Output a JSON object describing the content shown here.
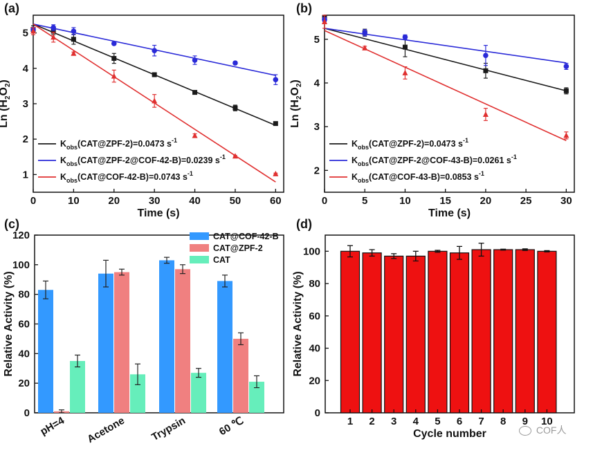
{
  "colors": {
    "black": "#1a1a1a",
    "blue": "#2a2ad8",
    "red": "#e03030",
    "bar_blue": "#3399ff",
    "bar_pink": "#f08080",
    "bar_green": "#66eebb",
    "bar_red": "#ee1111"
  },
  "watermark": "COF人",
  "chart_data": [
    {
      "panel": "(a)",
      "type": "scatter",
      "xlabel": "Time (s)",
      "ylabel": "Ln (H2O2)",
      "xlim": [
        0,
        62
      ],
      "ylim": [
        0.5,
        5.5
      ],
      "xticks": [
        "0",
        "10",
        "20",
        "30",
        "40",
        "50",
        "60"
      ],
      "yticks": [
        "1",
        "2",
        "3",
        "4",
        "5"
      ],
      "series": [
        {
          "name": "Kobs(CAT@ZPF-2)=0.0473 s-1",
          "leg_sub": "obs",
          "leg_pre": "(CAT@ZPF-2)=0.0473 s",
          "leg_sup": "-1",
          "color": "#1a1a1a",
          "marker": "square",
          "x": [
            0,
            5,
            10,
            20,
            30,
            40,
            50,
            60
          ],
          "y": [
            5.1,
            5.05,
            4.82,
            4.28,
            3.82,
            3.32,
            2.88,
            2.44
          ],
          "err": [
            0.1,
            0.1,
            0.14,
            0.14,
            0.05,
            0.04,
            0.08,
            0.04
          ],
          "fit": [
            [
              0,
              5.25
            ],
            [
              60,
              2.39
            ]
          ]
        },
        {
          "name": "Kobs(CAT@ZPF-2@COF-42-B)=0.0239 s-1",
          "leg_sub": "obs",
          "leg_pre": "(CAT@ZPF-2@COF-42-B)=0.0239 s",
          "leg_sup": "-1",
          "color": "#2a2ad8",
          "marker": "circle",
          "x": [
            0,
            5,
            10,
            20,
            30,
            40,
            50,
            60
          ],
          "y": [
            5.1,
            5.15,
            5.05,
            4.7,
            4.5,
            4.23,
            4.15,
            3.68
          ],
          "err": [
            0.05,
            0.08,
            0.1,
            0.03,
            0.15,
            0.12,
            0.04,
            0.14
          ],
          "fit": [
            [
              0,
              5.25
            ],
            [
              60,
              3.8
            ]
          ]
        },
        {
          "name": "Kobs(CAT@COF-42-B)=0.0743 s-1",
          "leg_sub": "obs",
          "leg_pre": "(CAT@COF-42-B)=0.0743 s",
          "leg_sup": "-1",
          "color": "#e03030",
          "marker": "triangle",
          "x": [
            0,
            5,
            10,
            20,
            30,
            40,
            50,
            60
          ],
          "y": [
            5.05,
            4.88,
            4.42,
            3.78,
            3.08,
            2.1,
            1.52,
            1.02
          ],
          "err": [
            0.1,
            0.14,
            0.04,
            0.17,
            0.18,
            0.05,
            0.02,
            0.02
          ],
          "fit": [
            [
              0,
              5.25
            ],
            [
              60,
              0.79
            ]
          ]
        }
      ]
    },
    {
      "panel": "(b)",
      "type": "scatter",
      "xlabel": "Time (s)",
      "ylabel": "Ln (H2O2)",
      "xlim": [
        0,
        31
      ],
      "ylim": [
        1.5,
        5.55
      ],
      "xticks": [
        "0",
        "5",
        "10",
        "15",
        "20",
        "25",
        "30"
      ],
      "yticks": [
        "2",
        "3",
        "4",
        "5"
      ],
      "series": [
        {
          "name": "Kobs(CAT@ZPF-2)=0.0473 s-1",
          "leg_sub": "obs",
          "leg_pre": "(CAT@ZPF-2)=0.0473 s",
          "leg_sup": "-1",
          "color": "#1a1a1a",
          "marker": "square",
          "x": [
            0,
            5,
            10,
            20,
            30
          ],
          "y": [
            5.5,
            5.15,
            4.82,
            4.28,
            3.82
          ],
          "err": [
            0.05,
            0.08,
            0.22,
            0.17,
            0.07
          ],
          "fit": [
            [
              0,
              5.25
            ],
            [
              30,
              3.82
            ]
          ]
        },
        {
          "name": "Kobs(CAT@ZPF-2@COF-43-B)=0.0261 s-1",
          "leg_sub": "obs",
          "leg_pre": "(CAT@ZPF-2@COF-43-B)=0.0261 s",
          "leg_sup": "-1",
          "color": "#2a2ad8",
          "marker": "circle",
          "x": [
            0,
            5,
            10,
            20,
            30
          ],
          "y": [
            5.45,
            5.15,
            5.05,
            4.63,
            4.38
          ],
          "err": [
            0.05,
            0.07,
            0.05,
            0.23,
            0.07
          ],
          "fit": [
            [
              0,
              5.25
            ],
            [
              30,
              4.46
            ]
          ]
        },
        {
          "name": "Kobs(CAT@COF-43-B)=0.0853 s-1",
          "leg_sub": "obs",
          "leg_pre": "(CAT@COF-43-B)=0.0853 s",
          "leg_sup": "-1",
          "color": "#e03030",
          "marker": "triangle",
          "x": [
            0,
            5,
            10,
            20,
            30
          ],
          "y": [
            5.4,
            4.8,
            4.23,
            3.28,
            2.8
          ],
          "err": [
            0.15,
            0.04,
            0.14,
            0.14,
            0.08
          ],
          "fit": [
            [
              0,
              5.2
            ],
            [
              30,
              2.68
            ]
          ]
        }
      ]
    },
    {
      "panel": "(c)",
      "type": "bar",
      "xlabel": "",
      "ylabel": "Relative Activity (%)",
      "ylim": [
        0,
        120
      ],
      "yticks": [
        "0",
        "20",
        "40",
        "60",
        "80",
        "100",
        "120"
      ],
      "categories": [
        "pH=4",
        "Acetone",
        "Trypsin",
        "60 ℃"
      ],
      "series": [
        {
          "name": "CAT@COF-42-B",
          "color": "#3399ff",
          "values": [
            83,
            94,
            103,
            89
          ],
          "err": [
            6,
            9,
            2,
            4
          ]
        },
        {
          "name": "CAT@ZPF-2",
          "color": "#f08080",
          "values": [
            1,
            95,
            97,
            50
          ],
          "err": [
            1,
            2,
            3,
            4
          ]
        },
        {
          "name": "CAT",
          "color": "#66eebb",
          "values": [
            35,
            26,
            27,
            21
          ],
          "err": [
            4,
            7,
            3,
            4
          ]
        }
      ]
    },
    {
      "panel": "(d)",
      "type": "bar",
      "xlabel": "Cycle number",
      "ylabel": "Relative Activity (%)",
      "ylim": [
        0,
        110
      ],
      "yticks": [
        "0",
        "20",
        "40",
        "60",
        "80",
        "100"
      ],
      "categories": [
        "1",
        "2",
        "3",
        "4",
        "5",
        "6",
        "7",
        "8",
        "9",
        "10"
      ],
      "series": [
        {
          "name": "Relative Activity",
          "color": "#ee1111",
          "values": [
            100,
            99,
            97,
            97,
            100,
            99,
            101,
            101,
            101,
            100
          ],
          "err": [
            3.5,
            2,
            1.5,
            3,
            0.6,
            4,
            4,
            0.3,
            0.5,
            0.4
          ]
        }
      ]
    }
  ]
}
